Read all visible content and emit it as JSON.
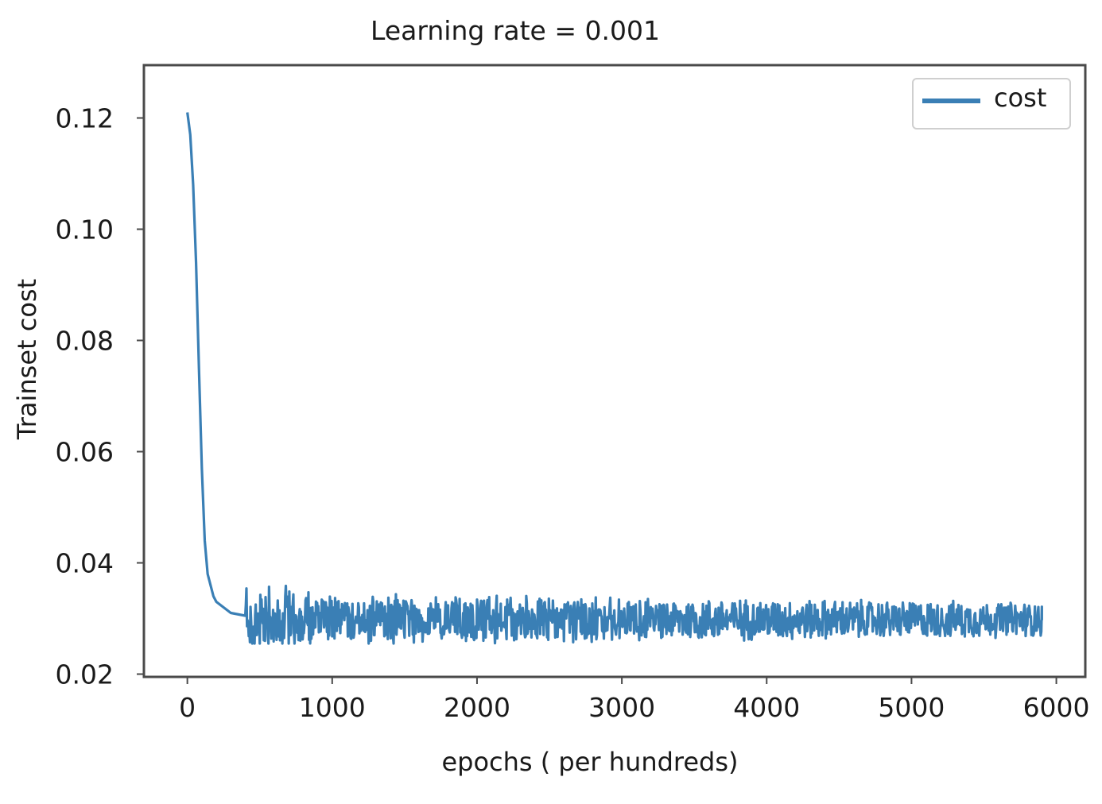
{
  "chart_data": {
    "type": "line",
    "title": "Learning rate = 0.001",
    "xlabel": "epochs ( per hundreds)",
    "ylabel": "Trainset cost",
    "xlim": [
      -300,
      6200
    ],
    "ylim": [
      0.0195,
      0.1295
    ],
    "x_ticks": [
      0,
      1000,
      2000,
      3000,
      4000,
      5000,
      6000
    ],
    "x_tick_labels": [
      "0",
      "1000",
      "2000",
      "3000",
      "4000",
      "5000",
      "6000"
    ],
    "y_ticks": [
      0.02,
      0.04,
      0.06,
      0.08,
      0.1,
      0.12
    ],
    "y_tick_labels": [
      "0.02",
      "0.04",
      "0.06",
      "0.08",
      "0.10",
      "0.12"
    ],
    "grid": false,
    "legend": {
      "position": "top-right",
      "entries": [
        "cost"
      ]
    },
    "series": [
      {
        "name": "cost",
        "color": "#3a7fb5",
        "x_start": 0,
        "x_end": 5900,
        "initial_values": [
          [
            0,
            0.121
          ],
          [
            20,
            0.117
          ],
          [
            40,
            0.108
          ],
          [
            60,
            0.094
          ],
          [
            80,
            0.075
          ],
          [
            100,
            0.057
          ],
          [
            120,
            0.044
          ],
          [
            140,
            0.038
          ],
          [
            160,
            0.036
          ],
          [
            180,
            0.034
          ],
          [
            200,
            0.033
          ],
          [
            250,
            0.032
          ],
          [
            300,
            0.031
          ],
          [
            400,
            0.0305
          ]
        ],
        "steady_mean": 0.0298,
        "noise_range": [
          0.0255,
          0.036
        ],
        "final_value": 0.0297
      }
    ]
  }
}
